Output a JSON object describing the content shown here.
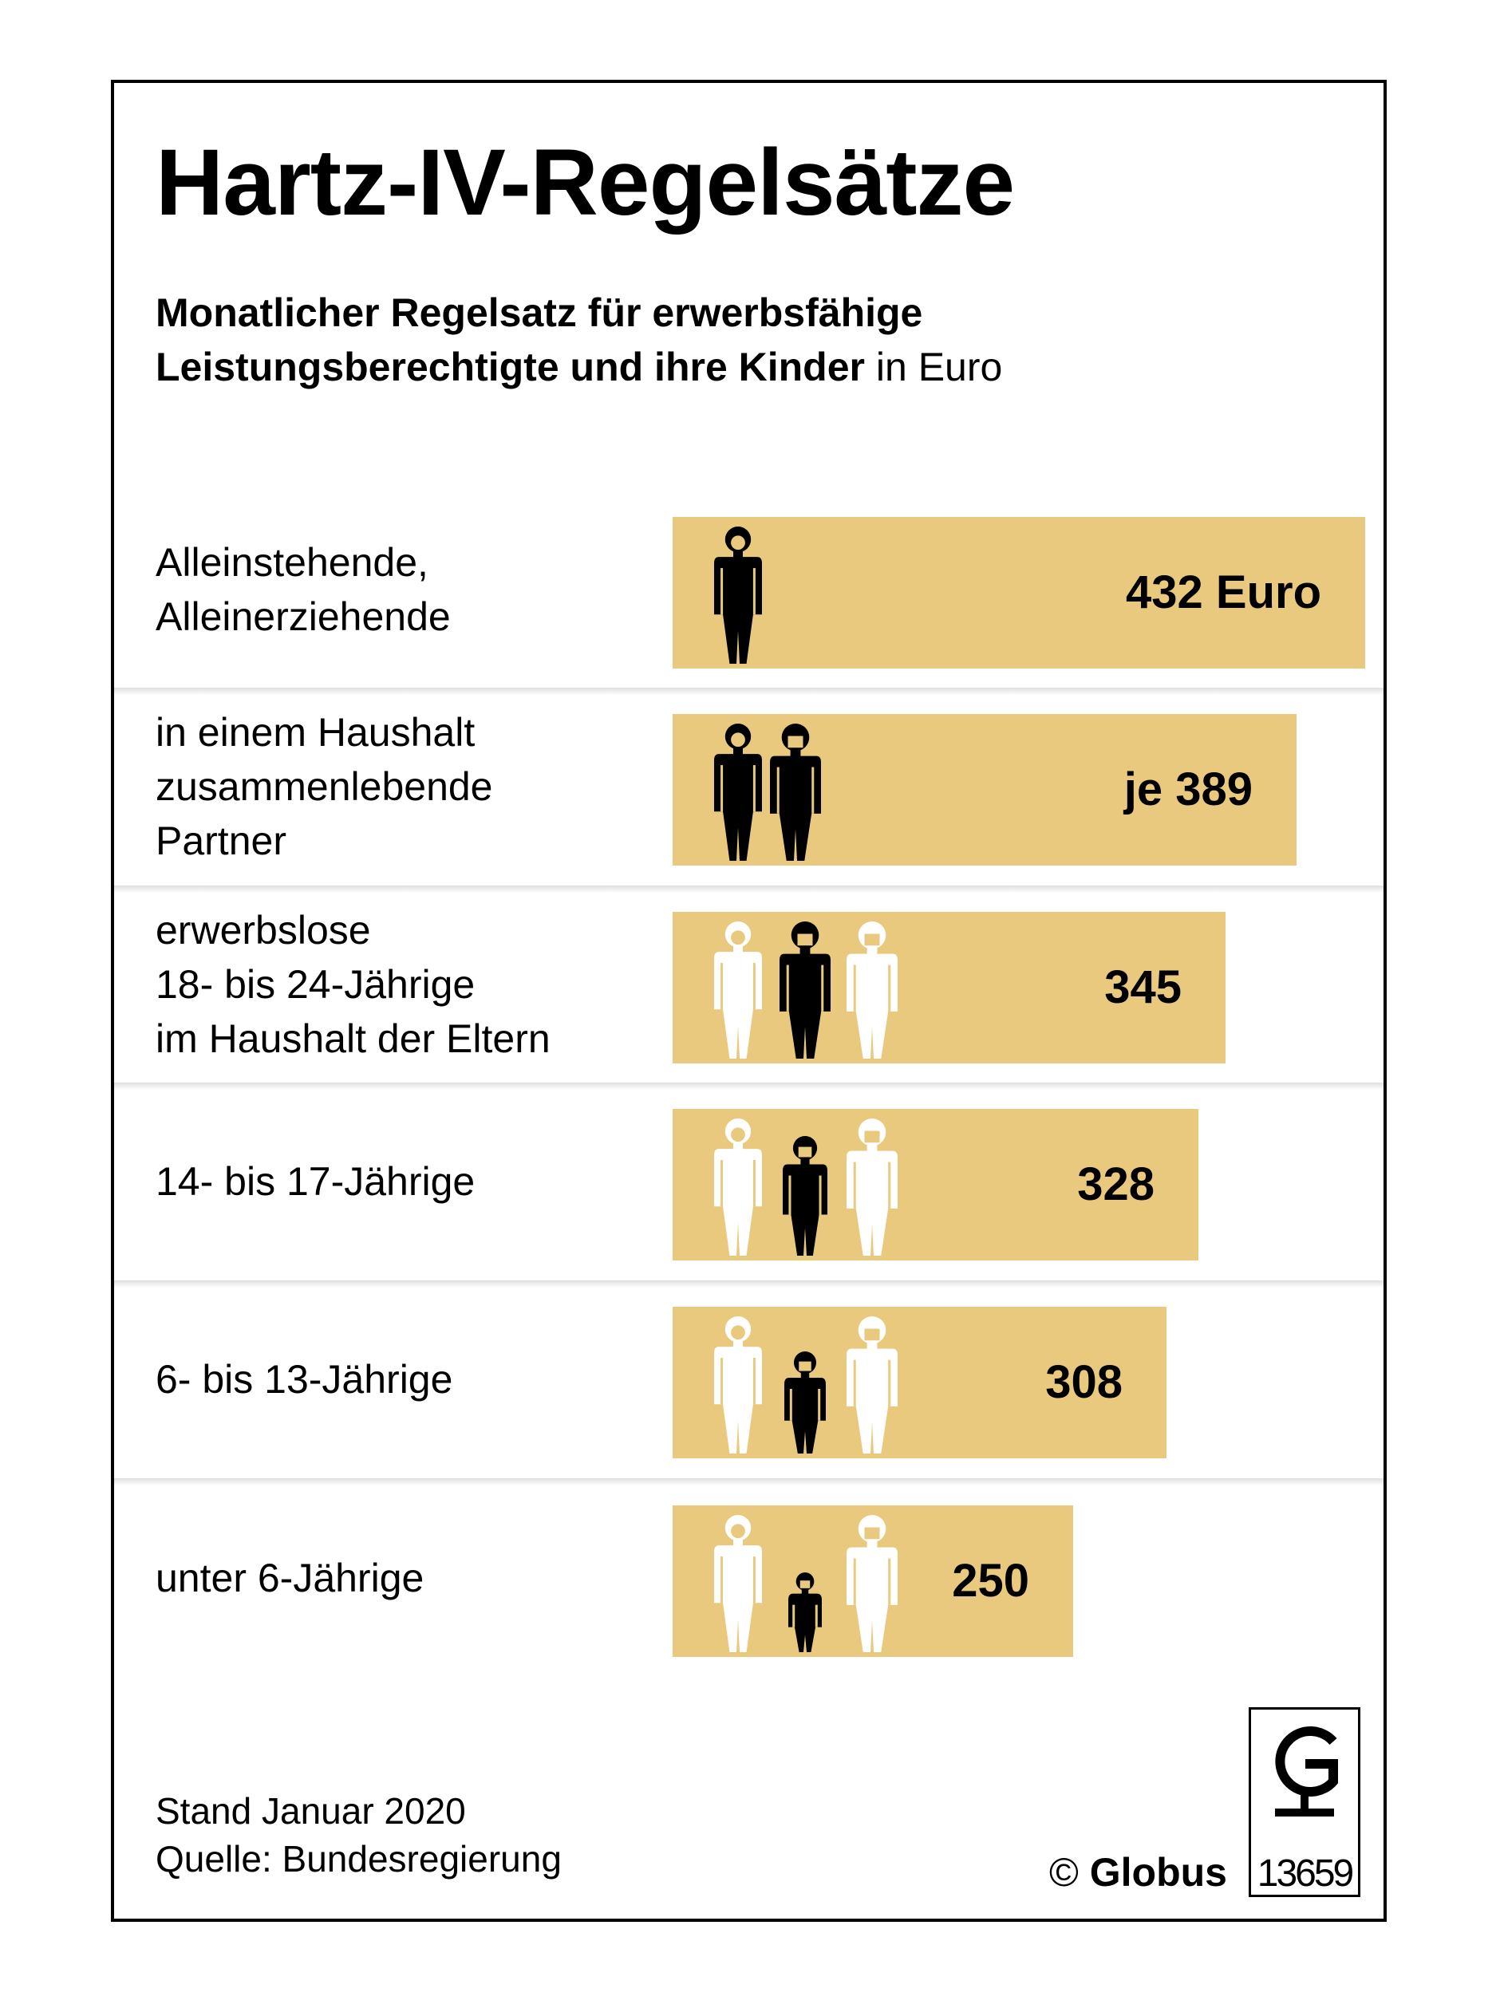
{
  "header": {
    "title": "Hartz-IV-Regelsätze",
    "subtitle_line1": "Monatlicher Regelsatz für erwerbsfähige",
    "subtitle_line2_bold": "Leistungsberechtigte und ihre Kinder",
    "subtitle_line2_unit": " in Euro"
  },
  "chart_data": {
    "type": "bar",
    "orientation": "horizontal",
    "title": "Hartz-IV-Regelsätze",
    "unit": "Euro",
    "categories": [
      "Alleinstehende, Alleinerziehende",
      "in einem Haushalt zusammenlebende Partner",
      "erwerbslose 18- bis 24-Jährige im Haushalt der Eltern",
      "14- bis 17-Jährige",
      "6- bis 13-Jährige",
      "unter 6-Jährige"
    ],
    "values": [
      432,
      389,
      345,
      328,
      308,
      250
    ],
    "rows": [
      {
        "label_lines": [
          "Alleinstehende,",
          "Alleinerziehende"
        ],
        "value": 432,
        "value_label": "432 Euro"
      },
      {
        "label_lines": [
          "in einem Haushalt",
          "zusammenlebende",
          "Partner"
        ],
        "value": 389,
        "value_label": "je 389"
      },
      {
        "label_lines": [
          "erwerbslose",
          "18- bis 24-Jährige",
          "im Haushalt der Eltern"
        ],
        "value": 345,
        "value_label": "345"
      },
      {
        "label_lines": [
          "14- bis 17-Jährige"
        ],
        "value": 328,
        "value_label": "328"
      },
      {
        "label_lines": [
          "6- bis 13-Jährige"
        ],
        "value": 308,
        "value_label": "308"
      },
      {
        "label_lines": [
          "unter 6-Jährige"
        ],
        "value": 250,
        "value_label": "250"
      }
    ]
  },
  "footer": {
    "date": "Stand Januar 2020",
    "source": "Quelle: Bundesregierung",
    "copyright_symbol": "©",
    "copyright_name": "Globus",
    "graphic_number": "13659"
  },
  "colors": {
    "bar": "#e9c97e",
    "figure_dark": "#000000",
    "figure_light": "#ffffff"
  }
}
